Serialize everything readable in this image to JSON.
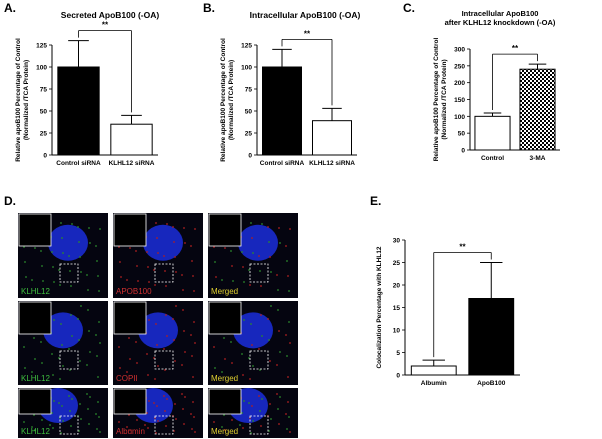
{
  "chart_data": [
    {
      "type": "bar",
      "panel": "A.",
      "title": [
        "Secreted ApoB100 (-OA)"
      ],
      "ylabel": [
        "Relative apoB100 Percentage of Control",
        "(Normalized /TCA Protein)"
      ],
      "categories": [
        "Control siRNA",
        "KLHL12 siRNA"
      ],
      "values": [
        100,
        35
      ],
      "errors": [
        30,
        10
      ],
      "colors": [
        "#000000",
        "#ffffff"
      ],
      "hatch": [
        false,
        false
      ],
      "ylim": [
        0,
        125
      ],
      "yticks": [
        0,
        25,
        50,
        75,
        100,
        125
      ],
      "annotation": "**"
    },
    {
      "type": "bar",
      "panel": "B.",
      "title": [
        "Intracellular ApoB100 (-OA)"
      ],
      "ylabel": [
        "Relative apoB100 Percentage of Control",
        "(Normalized /TCA Protein)"
      ],
      "categories": [
        "Control siRNA",
        "KLHL12 siRNA"
      ],
      "values": [
        100,
        39
      ],
      "errors": [
        20,
        14
      ],
      "colors": [
        "#000000",
        "#ffffff"
      ],
      "hatch": [
        false,
        false
      ],
      "ylim": [
        0,
        125
      ],
      "yticks": [
        0,
        25,
        50,
        75,
        100,
        125
      ],
      "annotation": "**"
    },
    {
      "type": "bar",
      "panel": "C.",
      "title": [
        "Intracellular ApoB100",
        "after KLHL12 knockdown (-OA)"
      ],
      "ylabel": [
        "Relative apoB100 Percentage of Control",
        "(Normalized /TCA Protein)"
      ],
      "categories": [
        "Control",
        "3-MA"
      ],
      "values": [
        100,
        240
      ],
      "errors": [
        10,
        15
      ],
      "colors": [
        "#ffffff",
        "#000000"
      ],
      "hatch": [
        false,
        true
      ],
      "ylim": [
        0,
        300
      ],
      "yticks": [
        0,
        50,
        100,
        150,
        200,
        250,
        300
      ],
      "annotation": "**"
    },
    {
      "type": "bar",
      "panel": "E.",
      "title": [],
      "ylabel": [
        "Colocalization Percentage with KLHL12"
      ],
      "categories": [
        "Albumin",
        "ApoB100"
      ],
      "values": [
        2,
        17
      ],
      "errors": [
        1.3,
        8
      ],
      "colors": [
        "#ffffff",
        "#000000"
      ],
      "hatch": [
        false,
        false
      ],
      "ylim": [
        0,
        30
      ],
      "yticks": [
        0,
        5,
        10,
        15,
        20,
        25,
        30
      ],
      "annotation": "**"
    }
  ],
  "microscopy": {
    "panel": "D.",
    "labels": [
      [
        "KLHL12",
        "APOB100",
        "Merged"
      ],
      [
        "KLHL12",
        "COPII",
        "Merged"
      ],
      [
        "KLHL12",
        "Albumin",
        "Merged"
      ]
    ]
  }
}
